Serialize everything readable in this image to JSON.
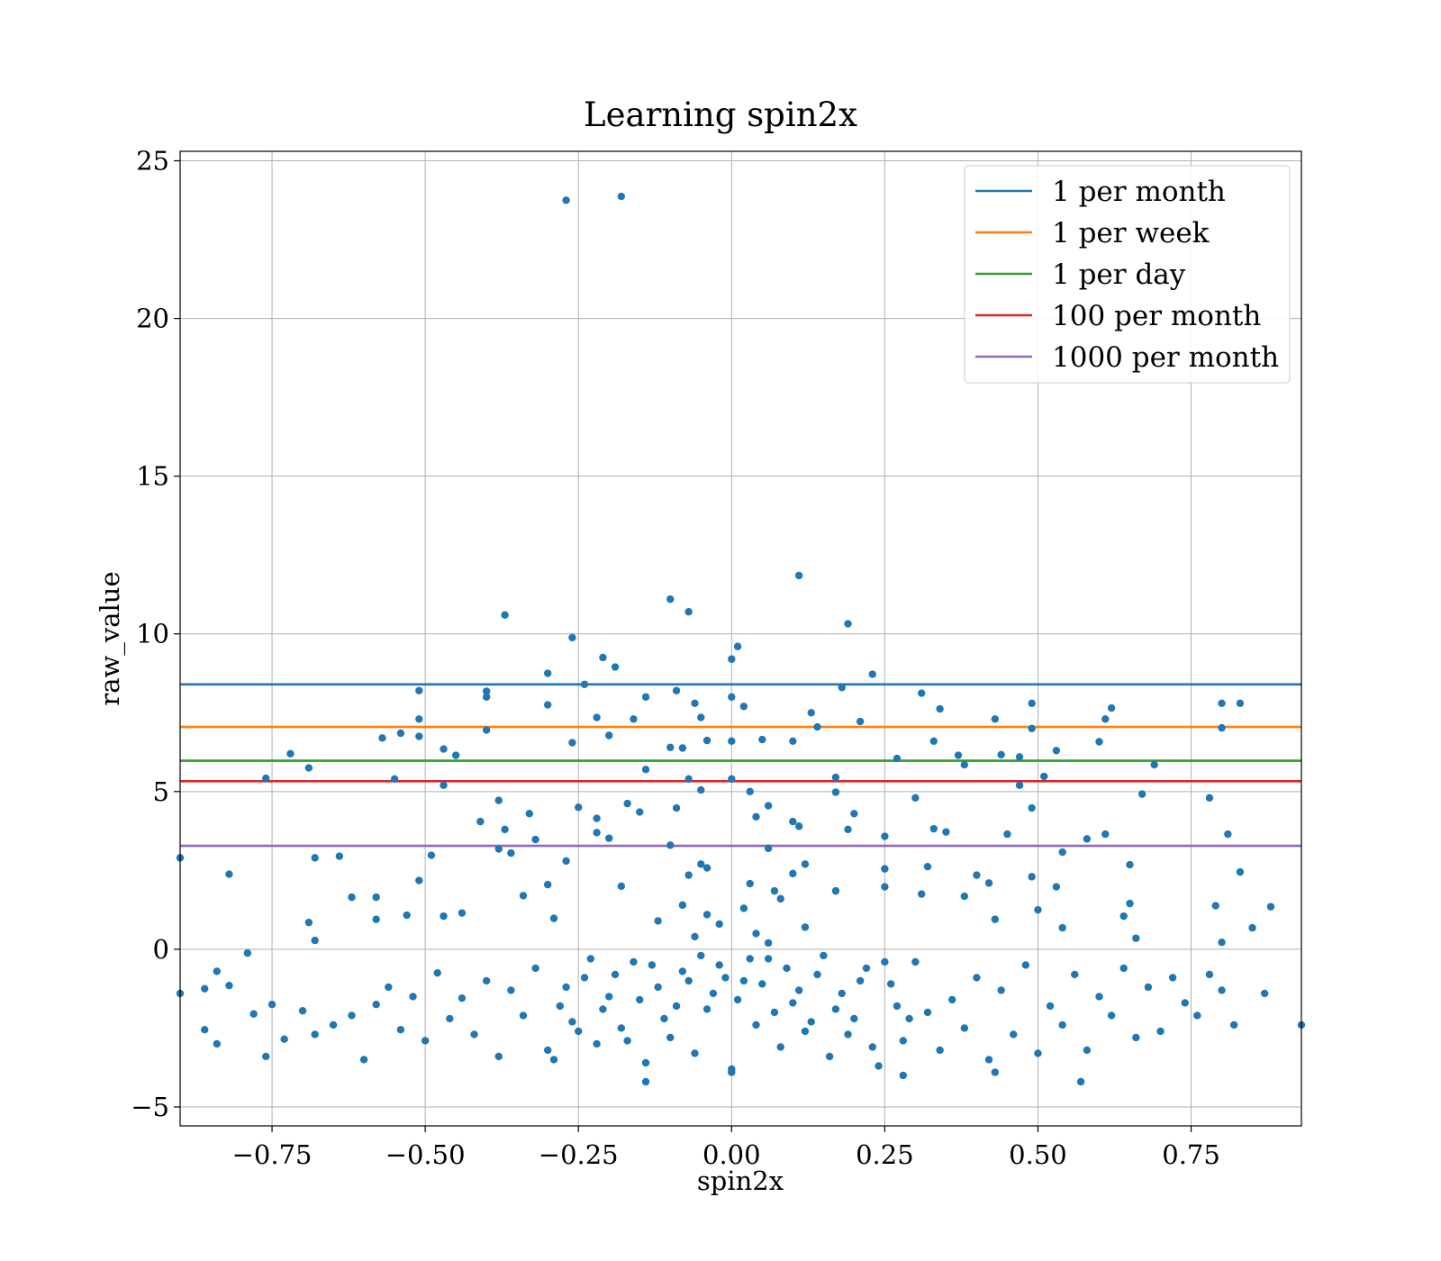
{
  "chart_data": {
    "type": "scatter",
    "title": "Learning spin2x",
    "xlabel": "spin2x",
    "ylabel": "raw_value",
    "xlim": [
      -0.9,
      0.93
    ],
    "ylim": [
      -5.6,
      25.3
    ],
    "x_ticks": [
      -0.75,
      -0.5,
      -0.25,
      0.0,
      0.25,
      0.5,
      0.75
    ],
    "x_tick_labels": [
      "−0.75",
      "−0.50",
      "−0.25",
      "0.00",
      "0.25",
      "0.50",
      "0.75"
    ],
    "y_ticks": [
      -5,
      0,
      5,
      10,
      15,
      20,
      25
    ],
    "y_tick_labels": [
      "−5",
      "0",
      "5",
      "10",
      "15",
      "20",
      "25"
    ],
    "grid": true,
    "legend_position": "top-right",
    "marker_color": "#1f77b4",
    "hlines": [
      {
        "name": "1 per month",
        "y": 8.4,
        "color": "#1f77b4"
      },
      {
        "name": "1 per week",
        "y": 7.05,
        "color": "#ff7f0e"
      },
      {
        "name": "1 per day",
        "y": 5.98,
        "color": "#2ca02c"
      },
      {
        "name": "100 per month",
        "y": 5.33,
        "color": "#d62728"
      },
      {
        "name": "1000 per month",
        "y": 3.28,
        "color": "#9467bd"
      }
    ],
    "points": [
      [
        -0.27,
        23.75
      ],
      [
        -0.18,
        23.87
      ],
      [
        0.11,
        11.85
      ],
      [
        -0.1,
        11.1
      ],
      [
        -0.07,
        10.7
      ],
      [
        0.19,
        10.32
      ],
      [
        -0.37,
        10.6
      ],
      [
        -0.26,
        9.88
      ],
      [
        0.01,
        9.6
      ],
      [
        0.0,
        9.2
      ],
      [
        -0.21,
        9.25
      ],
      [
        -0.19,
        8.95
      ],
      [
        -0.3,
        8.75
      ],
      [
        0.23,
        8.72
      ],
      [
        -0.24,
        8.4
      ],
      [
        -0.51,
        8.2
      ],
      [
        -0.4,
        8.18
      ],
      [
        -0.4,
        8.0
      ],
      [
        0.18,
        8.3
      ],
      [
        -0.09,
        8.2
      ],
      [
        -0.14,
        8.0
      ],
      [
        0.0,
        8.0
      ],
      [
        0.31,
        8.12
      ],
      [
        0.8,
        7.8
      ],
      [
        0.83,
        7.8
      ],
      [
        -0.3,
        7.75
      ],
      [
        -0.06,
        7.8
      ],
      [
        0.02,
        7.7
      ],
      [
        0.49,
        7.8
      ],
      [
        0.62,
        7.65
      ],
      [
        -0.51,
        7.3
      ],
      [
        -0.22,
        7.35
      ],
      [
        -0.16,
        7.3
      ],
      [
        0.13,
        7.5
      ],
      [
        0.34,
        7.62
      ],
      [
        -0.05,
        7.35
      ],
      [
        0.21,
        7.22
      ],
      [
        0.61,
        7.3
      ],
      [
        0.43,
        7.3
      ],
      [
        0.14,
        7.05
      ],
      [
        0.49,
        7.0
      ],
      [
        -0.4,
        6.95
      ],
      [
        0.8,
        7.02
      ],
      [
        -0.57,
        6.7
      ],
      [
        -0.54,
        6.85
      ],
      [
        -0.51,
        6.75
      ],
      [
        -0.2,
        6.78
      ],
      [
        -0.04,
        6.62
      ],
      [
        0.0,
        6.6
      ],
      [
        0.05,
        6.65
      ],
      [
        0.1,
        6.6
      ],
      [
        0.33,
        6.6
      ],
      [
        0.6,
        6.58
      ],
      [
        -0.72,
        6.2
      ],
      [
        -0.47,
        6.35
      ],
      [
        -0.45,
        6.15
      ],
      [
        -0.1,
        6.4
      ],
      [
        -0.08,
        6.38
      ],
      [
        0.27,
        6.05
      ],
      [
        0.37,
        6.15
      ],
      [
        0.44,
        6.17
      ],
      [
        0.47,
        6.1
      ],
      [
        0.53,
        6.3
      ],
      [
        -0.69,
        5.75
      ],
      [
        -0.26,
        6.55
      ],
      [
        -0.14,
        5.7
      ],
      [
        0.38,
        5.85
      ],
      [
        0.69,
        5.85
      ],
      [
        0.51,
        5.48
      ],
      [
        -0.76,
        5.42
      ],
      [
        -0.55,
        5.4
      ],
      [
        -0.47,
        5.2
      ],
      [
        -0.07,
        5.4
      ],
      [
        0.0,
        5.4
      ],
      [
        0.17,
        5.45
      ],
      [
        0.47,
        5.2
      ],
      [
        -0.05,
        5.05
      ],
      [
        0.03,
        5.0
      ],
      [
        0.17,
        4.98
      ],
      [
        0.67,
        4.92
      ],
      [
        0.3,
        4.8
      ],
      [
        0.78,
        4.8
      ],
      [
        -0.38,
        4.72
      ],
      [
        -0.17,
        4.62
      ],
      [
        0.06,
        4.55
      ],
      [
        -0.25,
        4.5
      ],
      [
        -0.09,
        4.48
      ],
      [
        0.49,
        4.48
      ],
      [
        -0.33,
        4.3
      ],
      [
        -0.15,
        4.35
      ],
      [
        0.2,
        4.3
      ],
      [
        -0.22,
        4.15
      ],
      [
        0.04,
        4.2
      ],
      [
        0.1,
        4.05
      ],
      [
        -0.41,
        4.05
      ],
      [
        0.11,
        3.9
      ],
      [
        0.19,
        3.8
      ],
      [
        0.33,
        3.82
      ],
      [
        0.35,
        3.72
      ],
      [
        -0.37,
        3.8
      ],
      [
        -0.22,
        3.7
      ],
      [
        -0.2,
        3.52
      ],
      [
        0.45,
        3.65
      ],
      [
        0.61,
        3.65
      ],
      [
        0.81,
        3.65
      ],
      [
        -0.32,
        3.48
      ],
      [
        0.25,
        3.58
      ],
      [
        0.58,
        3.5
      ],
      [
        -0.1,
        3.3
      ],
      [
        0.06,
        3.2
      ],
      [
        -0.38,
        3.18
      ],
      [
        0.54,
        3.08
      ],
      [
        -0.49,
        2.98
      ],
      [
        -0.36,
        3.05
      ],
      [
        -0.68,
        2.9
      ],
      [
        -0.64,
        2.95
      ],
      [
        -0.27,
        2.8
      ],
      [
        -0.05,
        2.7
      ],
      [
        -0.04,
        2.58
      ],
      [
        0.12,
        2.7
      ],
      [
        0.32,
        2.62
      ],
      [
        0.65,
        2.68
      ],
      [
        0.83,
        2.45
      ],
      [
        -0.82,
        2.38
      ],
      [
        -0.07,
        2.35
      ],
      [
        0.1,
        2.4
      ],
      [
        0.25,
        2.55
      ],
      [
        0.4,
        2.35
      ],
      [
        0.49,
        2.3
      ],
      [
        -0.51,
        2.18
      ],
      [
        -0.3,
        2.05
      ],
      [
        -0.18,
        2.0
      ],
      [
        0.03,
        2.08
      ],
      [
        0.25,
        1.98
      ],
      [
        0.42,
        2.1
      ],
      [
        0.53,
        1.98
      ],
      [
        -0.62,
        1.65
      ],
      [
        -0.58,
        1.65
      ],
      [
        -0.34,
        1.7
      ],
      [
        0.07,
        1.85
      ],
      [
        0.17,
        1.85
      ],
      [
        0.31,
        1.75
      ],
      [
        0.38,
        1.68
      ],
      [
        0.65,
        1.45
      ],
      [
        0.79,
        1.38
      ],
      [
        0.88,
        1.35
      ],
      [
        -0.47,
        1.05
      ],
      [
        -0.44,
        1.15
      ],
      [
        -0.29,
        0.98
      ],
      [
        -0.53,
        1.08
      ],
      [
        -0.69,
        0.85
      ],
      [
        -0.58,
        0.95
      ],
      [
        0.43,
        0.95
      ],
      [
        0.5,
        1.25
      ],
      [
        0.64,
        1.05
      ],
      [
        0.85,
        0.68
      ],
      [
        0.54,
        0.68
      ],
      [
        -0.68,
        0.28
      ],
      [
        -0.79,
        -0.12
      ],
      [
        0.66,
        0.35
      ],
      [
        0.8,
        0.22
      ],
      [
        -0.9,
        2.9
      ],
      [
        -0.9,
        -1.4
      ],
      [
        -0.86,
        -1.25
      ],
      [
        -0.84,
        -0.7
      ],
      [
        -0.82,
        -1.15
      ],
      [
        -0.84,
        -3.0
      ],
      [
        -0.86,
        -2.55
      ],
      [
        -0.78,
        -2.05
      ],
      [
        -0.75,
        -1.75
      ],
      [
        -0.76,
        -3.4
      ],
      [
        -0.73,
        -2.85
      ],
      [
        -0.7,
        -1.95
      ],
      [
        -0.68,
        -2.7
      ],
      [
        -0.65,
        -2.4
      ],
      [
        -0.62,
        -2.1
      ],
      [
        -0.6,
        -3.5
      ],
      [
        -0.58,
        -1.75
      ],
      [
        -0.56,
        -1.2
      ],
      [
        -0.54,
        -2.55
      ],
      [
        -0.52,
        -1.5
      ],
      [
        -0.5,
        -2.9
      ],
      [
        -0.48,
        -0.75
      ],
      [
        -0.46,
        -2.2
      ],
      [
        -0.44,
        -1.55
      ],
      [
        -0.42,
        -2.7
      ],
      [
        -0.4,
        -1.0
      ],
      [
        -0.38,
        -3.4
      ],
      [
        -0.36,
        -1.3
      ],
      [
        -0.34,
        -2.1
      ],
      [
        -0.32,
        -0.6
      ],
      [
        -0.3,
        -3.2
      ],
      [
        -0.28,
        -1.8
      ],
      [
        -0.26,
        -2.3
      ],
      [
        -0.24,
        -0.9
      ],
      [
        -0.22,
        -3.0
      ],
      [
        -0.2,
        -1.5
      ],
      [
        -0.18,
        -2.5
      ],
      [
        -0.16,
        -0.4
      ],
      [
        -0.14,
        -3.6
      ],
      [
        -0.12,
        -1.2
      ],
      [
        -0.1,
        -2.8
      ],
      [
        -0.08,
        -0.7
      ],
      [
        -0.06,
        -3.3
      ],
      [
        -0.04,
        -1.9
      ],
      [
        -0.02,
        -0.5
      ],
      [
        0.0,
        -3.8
      ],
      [
        0.02,
        -1.0
      ],
      [
        0.04,
        -2.4
      ],
      [
        0.06,
        -0.3
      ],
      [
        0.08,
        -3.1
      ],
      [
        0.1,
        -1.7
      ],
      [
        0.12,
        -2.6
      ],
      [
        0.14,
        -0.8
      ],
      [
        0.16,
        -3.4
      ],
      [
        0.18,
        -1.4
      ],
      [
        0.2,
        -2.2
      ],
      [
        0.22,
        -0.6
      ],
      [
        0.24,
        -3.7
      ],
      [
        0.26,
        -1.1
      ],
      [
        0.28,
        -2.9
      ],
      [
        0.3,
        -0.4
      ],
      [
        0.32,
        -2.0
      ],
      [
        0.34,
        -3.2
      ],
      [
        0.36,
        -1.6
      ],
      [
        0.38,
        -2.5
      ],
      [
        0.4,
        -0.9
      ],
      [
        0.42,
        -3.5
      ],
      [
        0.44,
        -1.3
      ],
      [
        0.46,
        -2.7
      ],
      [
        0.48,
        -0.5
      ],
      [
        0.5,
        -3.3
      ],
      [
        0.52,
        -1.8
      ],
      [
        0.54,
        -2.4
      ],
      [
        0.56,
        -0.8
      ],
      [
        0.58,
        -3.2
      ],
      [
        0.6,
        -1.5
      ],
      [
        0.62,
        -2.1
      ],
      [
        0.64,
        -0.6
      ],
      [
        0.66,
        -2.8
      ],
      [
        0.68,
        -1.2
      ],
      [
        0.7,
        -2.6
      ],
      [
        0.72,
        -0.9
      ],
      [
        0.74,
        -1.7
      ],
      [
        0.76,
        -2.1
      ],
      [
        0.78,
        -0.8
      ],
      [
        0.8,
        -1.3
      ],
      [
        0.82,
        -2.4
      ],
      [
        0.87,
        -1.4
      ],
      [
        0.93,
        -2.4
      ],
      [
        0.57,
        -4.2
      ],
      [
        -0.14,
        -4.2
      ],
      [
        0.28,
        -4.0
      ],
      [
        0.43,
        -3.9
      ],
      [
        0.0,
        -3.9
      ],
      [
        -0.05,
        -0.2
      ],
      [
        -0.03,
        -1.4
      ],
      [
        -0.01,
        -0.9
      ],
      [
        0.01,
        -1.6
      ],
      [
        0.03,
        -0.3
      ],
      [
        0.05,
        -1.1
      ],
      [
        0.07,
        -2.0
      ],
      [
        0.09,
        -0.6
      ],
      [
        -0.09,
        -1.8
      ],
      [
        -0.07,
        -1.0
      ],
      [
        -0.11,
        -2.2
      ],
      [
        -0.13,
        -0.5
      ],
      [
        -0.15,
        -1.6
      ],
      [
        -0.17,
        -2.9
      ],
      [
        -0.19,
        -0.8
      ],
      [
        -0.21,
        -1.9
      ],
      [
        -0.23,
        -0.3
      ],
      [
        -0.25,
        -2.6
      ],
      [
        -0.27,
        -1.2
      ],
      [
        -0.29,
        -3.5
      ],
      [
        0.11,
        -1.3
      ],
      [
        0.13,
        -2.3
      ],
      [
        0.15,
        -0.2
      ],
      [
        0.17,
        -1.9
      ],
      [
        0.19,
        -2.7
      ],
      [
        0.21,
        -1.0
      ],
      [
        0.23,
        -3.1
      ],
      [
        0.25,
        -0.4
      ],
      [
        0.27,
        -1.8
      ],
      [
        0.29,
        -2.2
      ],
      [
        0.02,
        1.3
      ],
      [
        -0.02,
        0.8
      ],
      [
        0.04,
        0.5
      ],
      [
        -0.04,
        1.1
      ],
      [
        0.06,
        0.2
      ],
      [
        -0.06,
        0.4
      ],
      [
        0.08,
        1.6
      ],
      [
        -0.08,
        1.4
      ],
      [
        0.12,
        0.7
      ],
      [
        -0.12,
        0.9
      ]
    ]
  }
}
